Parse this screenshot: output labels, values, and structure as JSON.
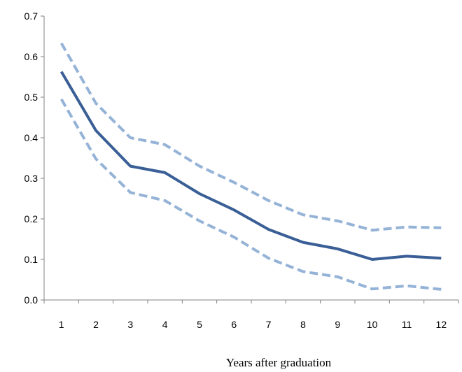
{
  "chart_data": {
    "type": "line",
    "x": [
      1,
      2,
      3,
      4,
      5,
      6,
      7,
      8,
      9,
      10,
      11,
      12
    ],
    "series": [
      {
        "style": "solid",
        "color": "#3a5f96",
        "values": [
          0.563,
          0.418,
          0.33,
          0.314,
          0.262,
          0.222,
          0.174,
          0.142,
          0.126,
          0.1,
          0.108,
          0.103
        ]
      },
      {
        "style": "dashed",
        "color": "#95b3d7",
        "values": [
          0.633,
          0.485,
          0.4,
          0.383,
          0.33,
          0.29,
          0.245,
          0.21,
          0.195,
          0.172,
          0.18,
          0.178
        ]
      },
      {
        "style": "dashed",
        "color": "#95b3d7",
        "values": [
          0.495,
          0.348,
          0.265,
          0.245,
          0.195,
          0.155,
          0.103,
          0.07,
          0.057,
          0.027,
          0.035,
          0.026
        ]
      }
    ],
    "title": "",
    "xlabel": "Years after graduation",
    "ylabel": "",
    "ylim": [
      0,
      0.7
    ],
    "yticks": [
      "0.0",
      "0.1",
      "0.2",
      "0.3",
      "0.4",
      "0.5",
      "0.6",
      "0.7"
    ],
    "xticks": [
      "1",
      "2",
      "3",
      "4",
      "5",
      "6",
      "7",
      "8",
      "9",
      "10",
      "11",
      "12"
    ],
    "grid": false,
    "legend": "none"
  }
}
